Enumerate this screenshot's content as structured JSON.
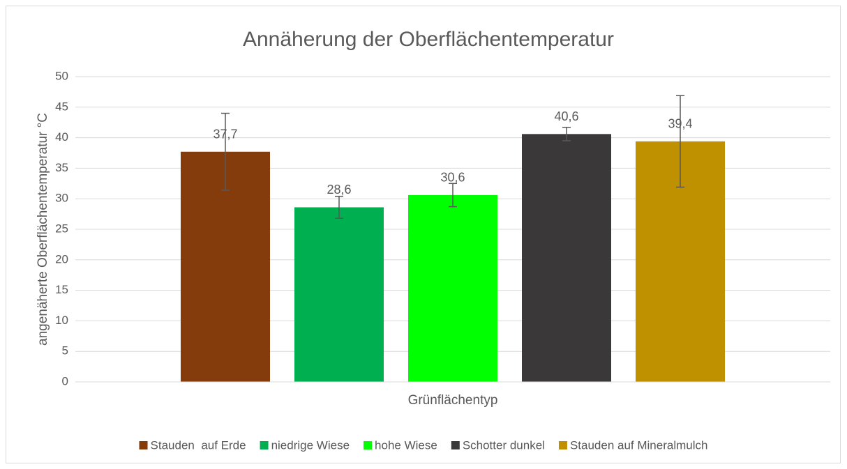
{
  "chart_data": {
    "type": "bar",
    "title": "Annäherung der Oberflächentemperatur",
    "ylabel": "angenäherte Oberflächentemperatur °C",
    "categories": [
      "Grünflächentyp"
    ],
    "series": [
      {
        "name": "Stauden  auf Erde",
        "color": "#843c0c",
        "values": [
          37.7
        ],
        "value_labels": [
          "37,7"
        ],
        "errors": [
          6.3
        ]
      },
      {
        "name": "niedrige Wiese",
        "color": "#00b050",
        "values": [
          28.6
        ],
        "value_labels": [
          "28,6"
        ],
        "errors": [
          1.8
        ]
      },
      {
        "name": "hohe Wiese",
        "color": "#00ff00",
        "values": [
          30.6
        ],
        "value_labels": [
          "30,6"
        ],
        "errors": [
          1.9
        ]
      },
      {
        "name": "Schotter dunkel",
        "color": "#3a3838",
        "values": [
          40.6
        ],
        "value_labels": [
          "40,6"
        ],
        "errors": [
          1.1
        ]
      },
      {
        "name": "Stauden auf Mineralmulch",
        "color": "#bf9000",
        "values": [
          39.4
        ],
        "value_labels": [
          "39,4"
        ],
        "errors": [
          7.5
        ]
      }
    ],
    "ylim": [
      0,
      50
    ],
    "yticks": [
      0,
      5,
      10,
      15,
      20,
      25,
      30,
      35,
      40,
      45,
      50
    ],
    "grid": true,
    "legend": "bottom"
  }
}
